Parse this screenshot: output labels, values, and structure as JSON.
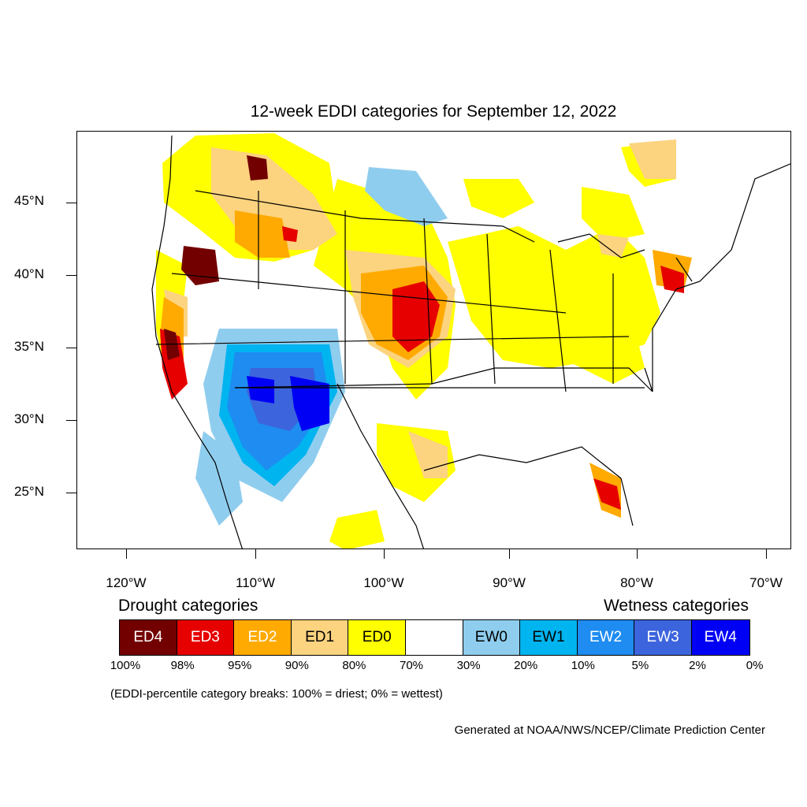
{
  "title": "12-week EDDI categories for September 12, 2022",
  "lat_labels": [
    "45°N",
    "40°N",
    "35°N",
    "30°N",
    "25°N"
  ],
  "lon_labels": [
    "120°W",
    "110°W",
    "100°W",
    "90°W",
    "80°W",
    "70°W"
  ],
  "legend": {
    "drought_heading": "Drought categories",
    "wetness_heading": "Wetness categories",
    "categories": [
      {
        "label": "ED4",
        "color": "#730000",
        "text_color": "#ffffff"
      },
      {
        "label": "ED3",
        "color": "#e60000",
        "text_color": "#ffffff"
      },
      {
        "label": "ED2",
        "color": "#ffaa00",
        "text_color": "#ffffff"
      },
      {
        "label": "ED1",
        "color": "#fcd37f",
        "text_color": "#000000"
      },
      {
        "label": "ED0",
        "color": "#ffff00",
        "text_color": "#000000"
      },
      {
        "label": "",
        "color": "#ffffff",
        "text_color": "#000000"
      },
      {
        "label": "EW0",
        "color": "#8fcdee",
        "text_color": "#000000"
      },
      {
        "label": "EW1",
        "color": "#00b4f0",
        "text_color": "#000000"
      },
      {
        "label": "EW2",
        "color": "#1e8cf0",
        "text_color": "#ffffff"
      },
      {
        "label": "EW3",
        "color": "#3c64dc",
        "text_color": "#ffffff"
      },
      {
        "label": "EW4",
        "color": "#0000f5",
        "text_color": "#ffffff"
      }
    ],
    "percentiles": [
      "100%",
      "98%",
      "95%",
      "90%",
      "80%",
      "70%",
      "30%",
      "20%",
      "10%",
      "5%",
      "2%",
      "0%"
    ]
  },
  "note": "(EDDI-percentile category breaks: 100% = driest; 0% = wettest)",
  "credit": "Generated at NOAA/NWS/NCEP/Climate Prediction Center"
}
